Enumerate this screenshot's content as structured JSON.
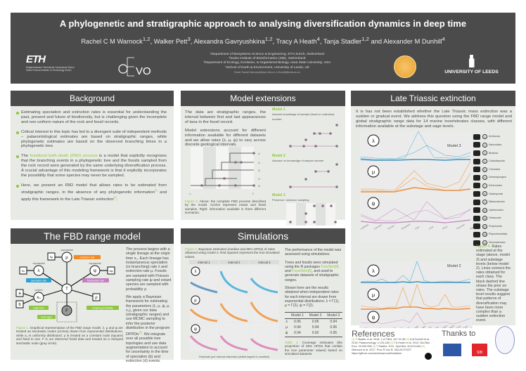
{
  "header": {
    "title": "A phylogenetic and stratigraphic approach to analysing diversification dynamics in deep time",
    "authors": [
      {
        "name": "Rachel C M Warnock",
        "sup": "1,2"
      },
      {
        "name": "Walker Pett",
        "sup": "3"
      },
      {
        "name": "Alexandra Gavryushkina",
        "sup": "1,2"
      },
      {
        "name": "Tracy A Heath",
        "sup": "4"
      },
      {
        "name": "Tanja Stadler",
        "sup": "1,2"
      },
      {
        "name": "Alexander M Dunhill",
        "sup": "4"
      }
    ],
    "authors_and": "and",
    "affiliations": [
      "¹Department of Biosystems Science & Engineering, ETH Zurich, Switzerland",
      "²Swiss Institute of Bioinformatics (SIB), Switzerland",
      "³Department of Ecology, Evolution, & Organismal Biology, Iowa State University, USA",
      "⁴School of Earth & Environment, University of Leeds, UK"
    ],
    "email": "Email: Rachel.Warnock@bsse.ethz.ch, A.Dunhill@leeds.ac.uk",
    "logos": {
      "eth": "ETH",
      "eth_line1": "Eidgenössische Technische Hochschule Zürich",
      "eth_line2": "Swiss Federal Institute of Technology Zurich",
      "cevo": "VO",
      "leeds": "UNIVERSITY OF LEEDS"
    }
  },
  "colors": {
    "header": "#4b4b4b",
    "panel": "#e8eae5",
    "accent": "#8dc63f",
    "lambda": "#29a3d6",
    "mu": "#f08a24",
    "psi": "#c47fc0"
  },
  "background": {
    "title": "Background",
    "bullets": [
      {
        "text": "Estimating speciation and extinction rates is essential for understanding the past, present and future of biodiversity, but is challenging given the incomplete and non-uniform nature of the rock and fossil records."
      },
      {
        "text": "Critical interest in this topic has led to a divergent suite of independent methods – palaeontological estimates are based on stratigraphic ranges, while phylogenetic estimates are based on the observed branching times in a phylogenetic tree."
      },
      {
        "pre": "The ",
        "highlight": "fossilized birth-death (FBD) process",
        "post": " is a model that explicitly recognizes that the branching events in a phylogenetic tree and the fossils sampled from the rock record were generated by the same underlying diversification process. A crucial advantage of this modeling framework is that it explicitly incorporates the possibility that some species may never be sampled."
      },
      {
        "pre": "Here, we present an FBD model that allows rates to be estimated from stratigraphic ranges, in the absence of any phylogenetic information",
        "ref1": "[1]",
        "mid": " and apply this framework to the Late Triassic extinction",
        "ref2": "[2]",
        "post": "."
      }
    ]
  },
  "model_ext": {
    "title": "Model extensions",
    "p1": "The data are stratigraphic ranges, the interval between first and last appearances of taxa in the fossil record.",
    "p2": "Model extensions account for different information available for different datasets and we allow rates (λ, μ, ψ) to vary across discrete geological intervals.",
    "fig_label": "Figure 2.",
    "fig_caption": " Above: the complete FBD process described by the model. Circles represent extant and fossil samples. Right: information available in three different scenarios.",
    "models": [
      {
        "name": "Model 1",
        "desc": "Assume knowledge of sample (fossil or collection) number"
      },
      {
        "name": "Model 2",
        "desc": "Assume no knowledge of sample number"
      },
      {
        "name": "Model 3",
        "desc": "Presence / absence sampling"
      }
    ],
    "tips": [
      "t1",
      "t2",
      "t3",
      "t4",
      "t5"
    ],
    "axis": [
      "x₀",
      "0"
    ]
  },
  "late_triassic": {
    "title": "Late Triassic extinction",
    "intro": "It is has not been established whether the Late Triassic mass extinction was a sudden or gradual event. We address this question using the FBD range model and global stratigraphic range data for 14 marine invertebrates classes, with different information available at the substage and sage levels.",
    "model3": "Model 3",
    "model2": "Model 2",
    "rates": [
      "λ",
      "μ",
      "ψ"
    ],
    "classes": [
      "Anthozoa",
      "Asteroidea",
      "Bivalvia",
      "Cephalopoda",
      "Crinoidea",
      "Demospongea",
      "Echinoidea",
      "Gastropoda",
      "Malacostraca",
      "Ophiuroidea",
      "Ostracoda",
      "Polychaeta",
      "Rhynchonellata",
      "Stenolaemata"
    ],
    "stages": [
      "Ladinian",
      "Carnian",
      "Norian",
      "Rhaetian",
      "Hett",
      "Sine",
      "Plien",
      "Toarcian",
      "Aalenian"
    ],
    "substages": [
      "Ladinian",
      "Julian",
      "Tuvalian",
      "Lacian",
      "Alaunian",
      "Sevatian",
      "Rhaetian",
      "Lower Hett",
      "Upper Hett",
      "Lower Sin",
      "Upper Sin",
      "Lower Plien",
      "Upper Plien",
      "Lower Toar",
      "Upper Toar",
      "Aalenian"
    ],
    "fig_label": "Figure 4.",
    "fig_caption": " Rates estimated at the stage (above, model 3) and substage levels (below model 2). Lines connect the rates obtained for each class. The black dashed line shows the prior on rates. The substage level results suggest that patterns of diversification may have been more complex than a sudden extinction event."
  },
  "fbd": {
    "title": "The FBD range model",
    "p1": "The process begins with a single lineage at the origin time x₀. Each lineage has instantaneous speciation (or branching) rate λ and extinction rate μ. Fossils are sampled with Poisson sampling rate ψ and extant species are sampled with probability ρ.",
    "p2_pre": "We apply a Bayesian framework for estimating the parameters (λ, μ, ψ, ρ, x₀), given our data (stratigraphic ranges) and use MCMC sampling to infer the posterior distribution in the program DPPDiv",
    "p2_ref": "[3]",
    "p2_post": ". We integrate over all possible tree topologies and use data augmentation to account for uncertainty in the time of speciation (b) and extinction (d) events.",
    "fig_label": "Figure 1.",
    "fig_caption": " Graphical representation of the FBD range model. λ, μ and ψ are treated as stochastic nodes (circles) drawn from exponential distributions, while x₀ is uniformly distributed. ρ is treated as a constant node (square) and fixed to one. F is our observed fossil data and treated as a clamped stochastic node (gray circle).",
    "diagram": {
      "exponential": "exponential",
      "uniform": "uniform",
      "mu": "μ",
      "lambda": "λ",
      "psi": "ψ",
      "x0": "x₀",
      "T": "T",
      "F": "F",
      "rho": "ρ",
      "a": "a",
      "b": "b",
      "d_mu": "δμ",
      "d_lambda": "δλ",
      "d_psi": "δψ",
      "extinction": "extinction rate",
      "speciation": "speciation rate",
      "fossilization": "fossilization rate",
      "origin": "origin time",
      "sampling": "sampling probability",
      "fossil_ages": "fossil ages"
    }
  },
  "simulations": {
    "title": "Simulations",
    "fig_label": "Figure 3.",
    "fig_caption": " Bayesian estimates (median and 95% HPDs) of rates obtained using model 2. Red squares represent the true simulated values.",
    "intervals": [
      "interval 1",
      "interval 2",
      "interval 3"
    ],
    "xlabel": "Replicate (per-interval estimates plotted largest to smallest)",
    "p1": "The performance of the model was assessed using simulations.",
    "p2_pre": "Trees and fossils were simulated using the R packages ",
    "p2_pkg1": "TreeSim[4]",
    "p2_mid": " and ",
    "p2_pkg2": "FossilSim[5]",
    "p2_post": ", and used to generate datasets of stratigraphic ranges.",
    "p3": "Shown here are the results obtained when independent rates for each interval are drawn from exponential distributions: λ = Γ(1), μ = Γ(2), ψ = Γ(2).",
    "table": {
      "headers": [
        "",
        "Model 1",
        "Model 2",
        "Model 3"
      ],
      "rows": [
        [
          "λ",
          "0.96",
          "0.95",
          "0.94"
        ],
        [
          "μ",
          "0.94",
          "0.94",
          "0.96"
        ],
        [
          "ψ",
          "0.94",
          "0.92",
          "0.95"
        ]
      ]
    },
    "table_label": "Table 1.",
    "table_caption": " Coverage estimates (the proportion of 95% HPDs that contain the true parameter values) based on simulated datasets."
  },
  "references": {
    "title": "References",
    "items": [
      {
        "n": "[1]",
        "t": " T Stadler et al. 2018. J of TBiol. 447:41-55 "
      },
      {
        "n": "[2]",
        "t": " A M Dunhill et al. 2018. Palaeontology. 1:133-148 "
      },
      {
        "n": "[3]",
        "t": " T A Heath et al. 2012. Mol Biol Evol. 29:939-955 "
      },
      {
        "n": "[4]",
        "t": " T Stadler. 2011. Syst Biol. 60:676-684 "
      },
      {
        "n": "[5]",
        "t": " Warnock et al. 2017. Proc R Soc B. 284:20170227 "
      }
    ],
    "url": "https://github.com/rachelwarnock/fossilsim"
  },
  "thanks": {
    "title": "Thanks to",
    "sib": "SIB"
  }
}
